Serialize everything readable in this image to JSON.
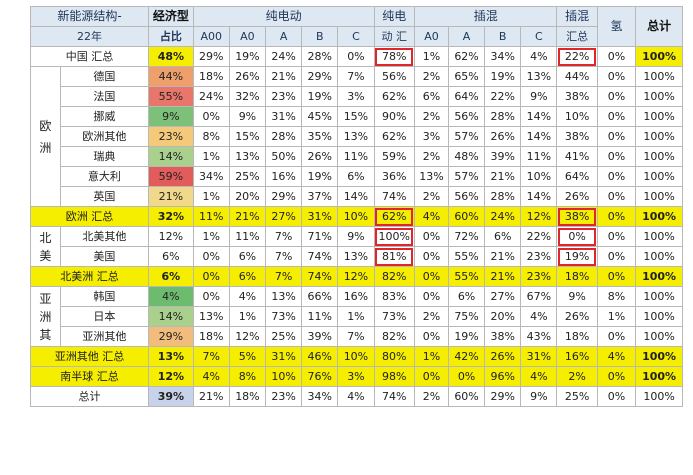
{
  "header": {
    "title_line1": "新能源结构-",
    "title_line2": "22年",
    "econ_line1": "经济型",
    "econ_line2": "占比",
    "bev_group": "纯电动",
    "bev_sum_line1": "纯电",
    "bev_sum_line2": "动 汇",
    "phev_group": "插混",
    "phev_sum_line1": "插混",
    "phev_sum_line2": "汇总",
    "hydrogen": "氢",
    "total": "总计",
    "sub": [
      "A00",
      "A0",
      "A",
      "B",
      "C",
      "A0",
      "A",
      "B",
      "C"
    ]
  },
  "regions": {
    "europe": "欧洲",
    "north_america": "北美",
    "asia": "亚洲其"
  },
  "rows": [
    {
      "label": "中国 汇总",
      "cells": [
        "48%",
        "29%",
        "19%",
        "24%",
        "28%",
        "0%",
        "78%",
        "1%",
        "62%",
        "34%",
        "4%",
        "22%",
        "0%",
        "100%"
      ]
    },
    {
      "label": "德国",
      "cells": [
        "44%",
        "18%",
        "26%",
        "21%",
        "29%",
        "7%",
        "56%",
        "2%",
        "65%",
        "19%",
        "13%",
        "44%",
        "0%",
        "100%"
      ]
    },
    {
      "label": "法国",
      "cells": [
        "55%",
        "24%",
        "32%",
        "23%",
        "19%",
        "3%",
        "62%",
        "6%",
        "64%",
        "22%",
        "9%",
        "38%",
        "0%",
        "100%"
      ]
    },
    {
      "label": "挪威",
      "cells": [
        "9%",
        "0%",
        "9%",
        "31%",
        "45%",
        "15%",
        "90%",
        "2%",
        "56%",
        "28%",
        "14%",
        "10%",
        "0%",
        "100%"
      ]
    },
    {
      "label": "欧洲其他",
      "cells": [
        "23%",
        "8%",
        "15%",
        "28%",
        "35%",
        "13%",
        "62%",
        "3%",
        "57%",
        "26%",
        "14%",
        "38%",
        "0%",
        "100%"
      ]
    },
    {
      "label": "瑞典",
      "cells": [
        "14%",
        "1%",
        "13%",
        "50%",
        "26%",
        "11%",
        "59%",
        "2%",
        "48%",
        "39%",
        "11%",
        "41%",
        "0%",
        "100%"
      ]
    },
    {
      "label": "意大利",
      "cells": [
        "59%",
        "34%",
        "25%",
        "16%",
        "19%",
        "6%",
        "36%",
        "13%",
        "57%",
        "21%",
        "10%",
        "64%",
        "0%",
        "100%"
      ]
    },
    {
      "label": "英国",
      "cells": [
        "21%",
        "1%",
        "20%",
        "29%",
        "37%",
        "14%",
        "74%",
        "2%",
        "56%",
        "28%",
        "14%",
        "26%",
        "0%",
        "100%"
      ]
    },
    {
      "label": "欧洲 汇总",
      "cells": [
        "32%",
        "11%",
        "21%",
        "27%",
        "31%",
        "10%",
        "62%",
        "4%",
        "60%",
        "24%",
        "12%",
        "38%",
        "0%",
        "100%"
      ]
    },
    {
      "label": "北美其他",
      "cells": [
        "12%",
        "1%",
        "11%",
        "7%",
        "71%",
        "9%",
        "100%",
        "0%",
        "72%",
        "6%",
        "22%",
        "0%",
        "0%",
        "100%"
      ]
    },
    {
      "label": "美国",
      "cells": [
        "6%",
        "0%",
        "6%",
        "7%",
        "74%",
        "13%",
        "81%",
        "0%",
        "55%",
        "21%",
        "23%",
        "19%",
        "0%",
        "100%"
      ]
    },
    {
      "label": "北美洲 汇总",
      "cells": [
        "6%",
        "0%",
        "6%",
        "7%",
        "74%",
        "12%",
        "82%",
        "0%",
        "55%",
        "21%",
        "23%",
        "18%",
        "0%",
        "100%"
      ]
    },
    {
      "label": "韩国",
      "cells": [
        "4%",
        "0%",
        "4%",
        "13%",
        "66%",
        "16%",
        "83%",
        "0%",
        "6%",
        "27%",
        "67%",
        "9%",
        "8%",
        "100%"
      ]
    },
    {
      "label": "日本",
      "cells": [
        "14%",
        "13%",
        "1%",
        "73%",
        "11%",
        "1%",
        "73%",
        "2%",
        "75%",
        "20%",
        "4%",
        "26%",
        "1%",
        "100%"
      ]
    },
    {
      "label": "亚洲其他",
      "cells": [
        "29%",
        "18%",
        "12%",
        "25%",
        "39%",
        "7%",
        "82%",
        "0%",
        "19%",
        "38%",
        "43%",
        "18%",
        "0%",
        "100%"
      ]
    },
    {
      "label": "亚洲其他 汇总",
      "cells": [
        "13%",
        "7%",
        "5%",
        "31%",
        "46%",
        "10%",
        "80%",
        "1%",
        "42%",
        "26%",
        "31%",
        "16%",
        "4%",
        "100%"
      ]
    },
    {
      "label": "南半球 汇总",
      "cells": [
        "12%",
        "4%",
        "8%",
        "10%",
        "76%",
        "3%",
        "98%",
        "0%",
        "0%",
        "96%",
        "4%",
        "2%",
        "0%",
        "100%"
      ]
    },
    {
      "label": "总计",
      "cells": [
        "39%",
        "21%",
        "18%",
        "23%",
        "34%",
        "4%",
        "74%",
        "2%",
        "60%",
        "29%",
        "9%",
        "25%",
        "0%",
        "100%"
      ]
    }
  ],
  "colors": {
    "header_bg": "#dde8f2",
    "highlight_row": "#f5ee00",
    "box_outline": "#e0262b",
    "econ_scale": {
      "48%": "#f5ee00",
      "44%": "#ef9f6c",
      "55%": "#e8766a",
      "9%": "#7cc07a",
      "23%": "#f4c97a",
      "14%": "#a9d18d",
      "59%": "#e25c5c",
      "21%": "#f1d88a",
      "32%": "#f5ee00",
      "12%": "#ffffff",
      "6%": "#ffffff",
      "4%": "#6cbb6e",
      "29%": "#f2bd7c",
      "13%": "#f5ee00",
      "39%": "#c7d3ea"
    }
  }
}
